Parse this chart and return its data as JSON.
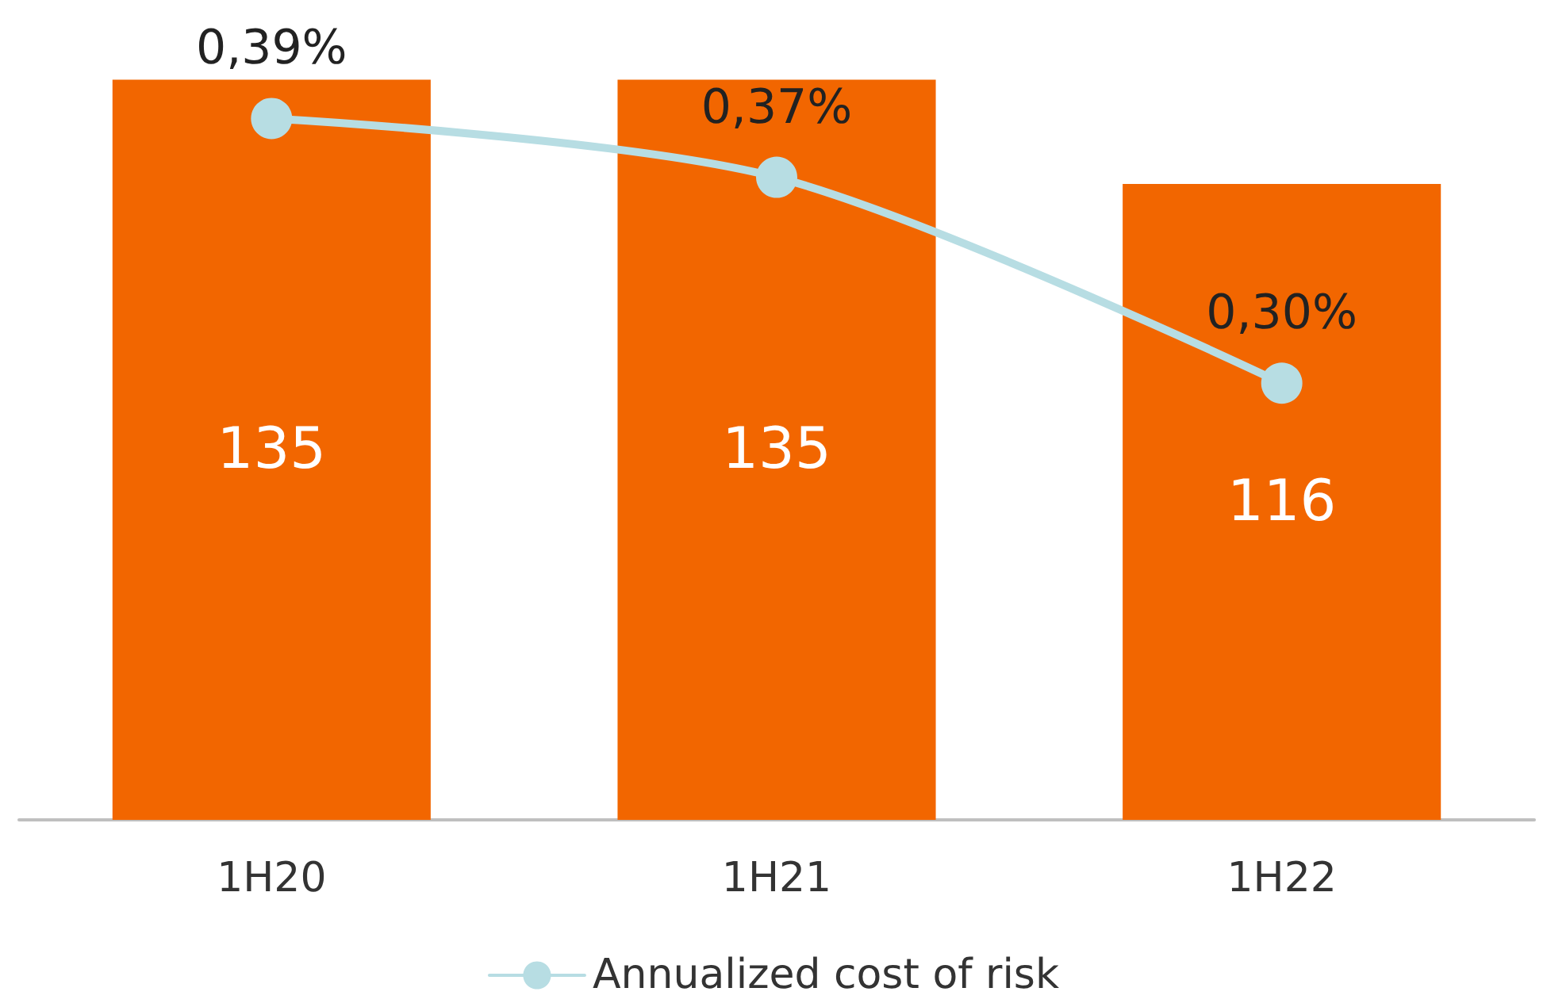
{
  "chart_data": {
    "type": "bar",
    "categories": [
      "1H20",
      "1H21",
      "1H22"
    ],
    "series": [
      {
        "color": "#f26600",
        "values": [
          135,
          135,
          116
        ],
        "value_labels": [
          "135",
          "135",
          "116"
        ]
      },
      {
        "type": "line",
        "name": "Annualized cost of risk",
        "color": "#b7dde3",
        "axis": "y2",
        "values": [
          0.39,
          0.37,
          0.3
        ],
        "value_labels": [
          "0,39%",
          "0,37%",
          "0,30%"
        ]
      }
    ],
    "tick_labels": "x",
    "grid": false,
    "legend": "bottom",
    "marker": "circle",
    "line_style": "solid"
  }
}
